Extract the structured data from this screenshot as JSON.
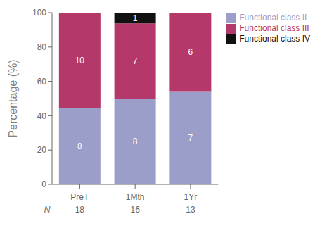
{
  "chart_data": {
    "type": "bar",
    "stacked": true,
    "categories": [
      "PreT",
      "1Mth",
      "1Yr"
    ],
    "y_label": "Percentage (%)",
    "ylim": [
      0,
      100
    ],
    "yticks": [
      0,
      20,
      40,
      60,
      80,
      100
    ],
    "grid": false,
    "legend": "right",
    "n_label": "N",
    "n_values": [
      18,
      16,
      13
    ],
    "series": [
      {
        "name": "Functional class II",
        "color": "#9b9ec8",
        "values": [
          44.44,
          50.0,
          53.85
        ],
        "counts": [
          8,
          8,
          7
        ]
      },
      {
        "name": "Functional class III",
        "color": "#b5386a",
        "values": [
          55.56,
          43.75,
          46.15
        ],
        "counts": [
          10,
          7,
          6
        ]
      },
      {
        "name": "Functional class IV",
        "color": "#111111",
        "values": [
          0.0,
          6.25,
          0.0
        ],
        "counts": [
          0,
          1,
          0
        ]
      }
    ]
  }
}
